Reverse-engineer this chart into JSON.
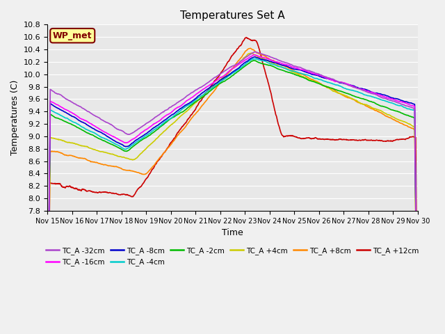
{
  "title": "Temperatures Set A",
  "xlabel": "Time",
  "ylabel": "Temperatures (C)",
  "ylim": [
    7.8,
    10.8
  ],
  "x_ticks": [
    "Nov 15",
    "Nov 16",
    "Nov 17",
    "Nov 18",
    "Nov 19",
    "Nov 20",
    "Nov 21",
    "Nov 22",
    "Nov 23",
    "Nov 24",
    "Nov 25",
    "Nov 26",
    "Nov 27",
    "Nov 28",
    "Nov 29",
    "Nov 30"
  ],
  "wp_met_label": "WP_met",
  "wp_met_box_color": "#ffff99",
  "wp_met_box_edge_color": "#800000",
  "wp_met_text_color": "#800000",
  "background_color": "#e8e8e8",
  "fig_background_color": "#f0f0f0",
  "grid_color": "#ffffff",
  "legend_colors": {
    "TC_A -32cm": "#aa44cc",
    "TC_A -16cm": "#ff00ff",
    "TC_A -8cm": "#0000cc",
    "TC_A -4cm": "#00cccc",
    "TC_A -2cm": "#00bb00",
    "TC_A +4cm": "#cccc00",
    "TC_A +8cm": "#ff8800",
    "TC_A +12cm": "#cc0000"
  },
  "legend_row1": [
    "TC_A -32cm",
    "TC_A -16cm",
    "TC_A -8cm",
    "TC_A -4cm",
    "TC_A -2cm",
    "TC_A +4cm"
  ],
  "legend_row2": [
    "TC_A +8cm",
    "TC_A +12cm"
  ]
}
